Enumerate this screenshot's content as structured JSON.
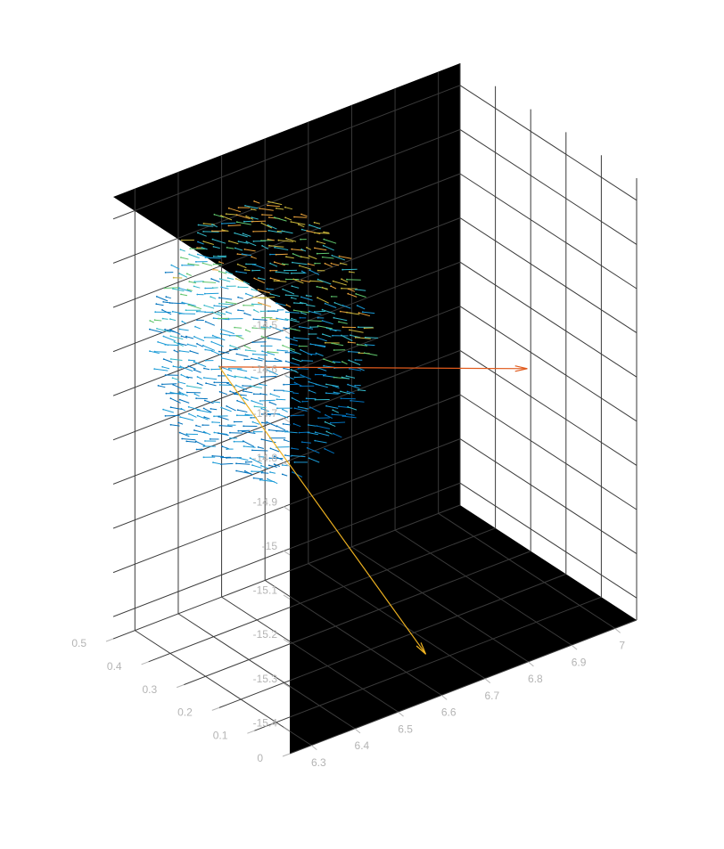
{
  "chart_data": {
    "type": "quiver3d",
    "title": "",
    "xlabel": "",
    "ylabel": "",
    "zlabel": "",
    "background": "#000000",
    "grid": true,
    "grid_color": "#3a3a3a",
    "axis_color": "#b4b4b4",
    "xlim": [
      6.25,
      7.05
    ],
    "ylim": [
      0,
      0.5
    ],
    "zlim": [
      -15.45,
      -14.45
    ],
    "xticks": [
      "6.3",
      "6.4",
      "6.5",
      "6.6",
      "6.7",
      "6.8",
      "6.9",
      "7"
    ],
    "yticks": [
      "0",
      "0.1",
      "0.2",
      "0.3",
      "0.4",
      "0.5"
    ],
    "zticks": [
      "-14.5",
      "-14.6",
      "-14.7",
      "-14.8",
      "-14.9",
      "-15",
      "-15.1",
      "-15.2",
      "-15.3",
      "-15.4"
    ],
    "point_cloud": {
      "shape": "ellipsoidal patch",
      "colormap": "parula",
      "colors": [
        "#0072bd",
        "#1a9bd7",
        "#33b8c8",
        "#5fc56b",
        "#c8b43a",
        "#e8a13a"
      ]
    },
    "principal_axes": [
      {
        "color": "#e05a1c",
        "from": [
          6.34,
          0.31,
          -14.77
        ],
        "to": [
          6.92,
          0.15,
          -14.91
        ]
      },
      {
        "color": "#edb120",
        "from": [
          6.34,
          0.31,
          -14.77
        ],
        "to": [
          6.58,
          0.02,
          -15.36
        ]
      }
    ]
  }
}
